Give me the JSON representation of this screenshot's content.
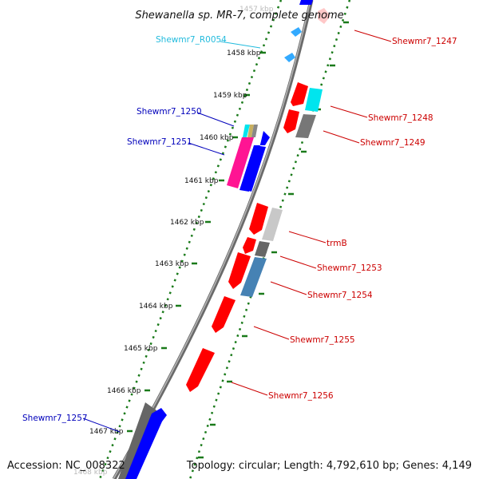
{
  "title": "Shewanella sp. MR-7, complete genome",
  "footer": {
    "accession": "Accession: NC_008322",
    "summary": "Topology: circular; Length: 4,792,610 bp; Genes: 4,149"
  },
  "colors": {
    "backbone": "#888888",
    "tick": "#1a7a1a",
    "red": "#ff0000",
    "blue": "#0000ff",
    "cyan": "#00e5ee",
    "gray": "#777777",
    "lightgray": "#c8c8c8",
    "magenta": "#ff1493",
    "steelblue": "#4682b4",
    "label_red": "#cc0000",
    "label_blue": "#0000bb",
    "label_cyan": "#22bbdd"
  },
  "kbp_labels": [
    "1457 kbp",
    "1458 kbp",
    "1459 kbp",
    "1460 kbp",
    "1461 kbp",
    "1462 kbp",
    "1463 kbp",
    "1464 kbp",
    "1465 kbp",
    "1466 kbp",
    "1467 kbp",
    "1468 kbp"
  ],
  "gene_labels": [
    {
      "text": "Shewmr7_R0054",
      "color": "label_cyan"
    },
    {
      "text": "Shewmr7_1247",
      "color": "label_red"
    },
    {
      "text": "Shewmr7_1248",
      "color": "label_red"
    },
    {
      "text": "Shewmr7_1249",
      "color": "label_red"
    },
    {
      "text": "Shewmr7_1250",
      "color": "label_blue"
    },
    {
      "text": "Shewmr7_1251",
      "color": "label_blue"
    },
    {
      "text": "trmB",
      "color": "label_red"
    },
    {
      "text": "Shewmr7_1253",
      "color": "label_red"
    },
    {
      "text": "Shewmr7_1254",
      "color": "label_red"
    },
    {
      "text": "Shewmr7_1255",
      "color": "label_red"
    },
    {
      "text": "Shewmr7_1256",
      "color": "label_red"
    },
    {
      "text": "Shewmr7_1257",
      "color": "label_blue"
    }
  ]
}
